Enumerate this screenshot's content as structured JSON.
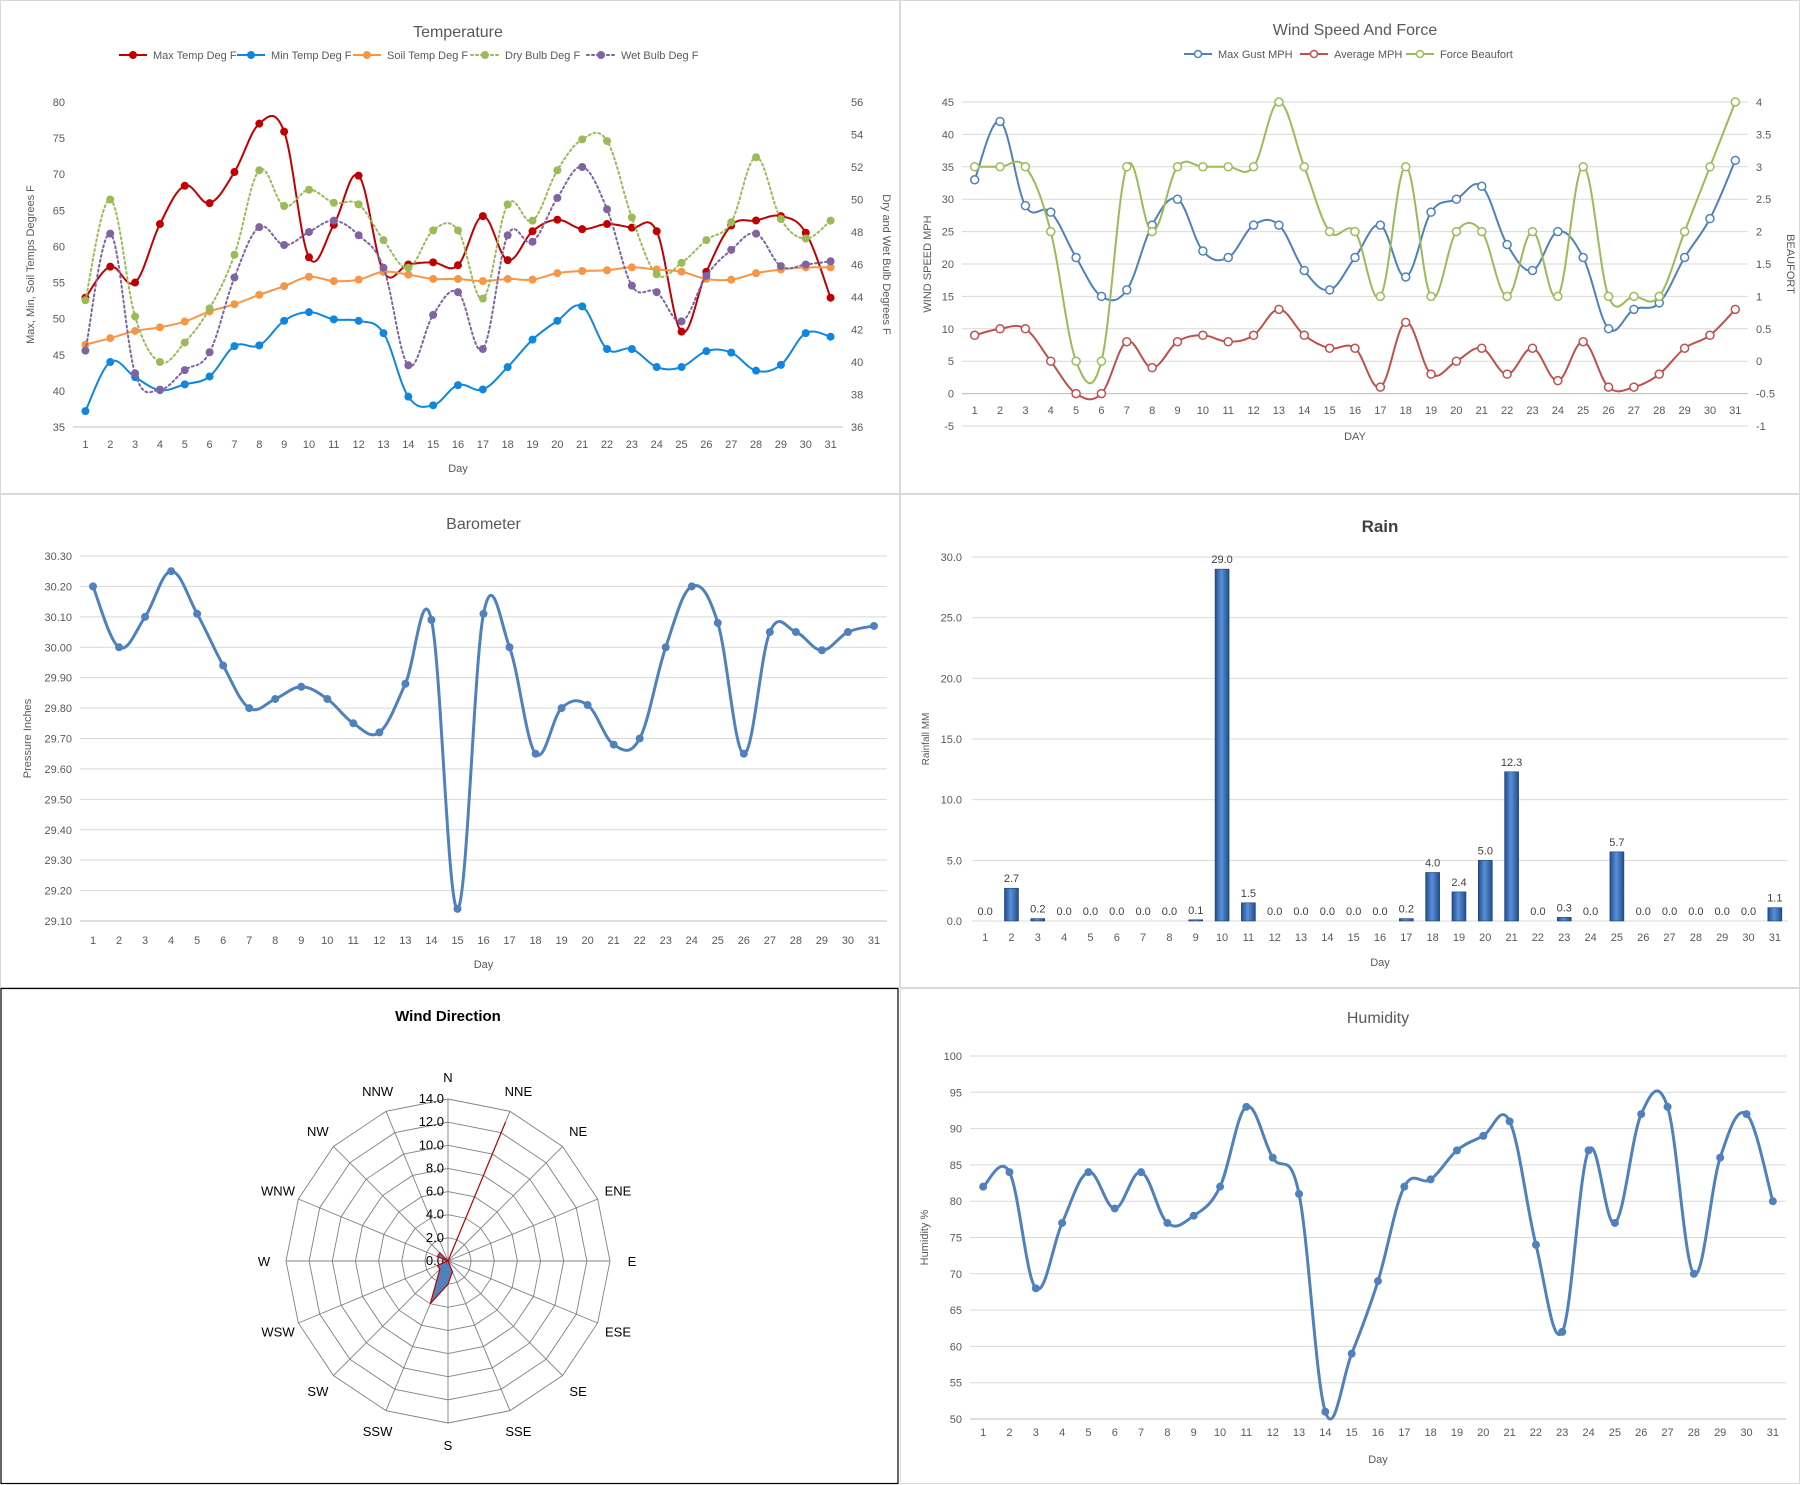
{
  "chart_data": [
    {
      "id": "temperature",
      "type": "line",
      "title": "Temperature",
      "xlabel": "Day",
      "ylabel": "Max, Min, Soil Temps Degrees F",
      "y2label": "Dry and Wet Bulb Degrees F",
      "ylim": [
        35,
        80
      ],
      "y2lim": [
        36,
        56
      ],
      "yticks": [
        "35",
        "40",
        "45",
        "50",
        "55",
        "60",
        "65",
        "70",
        "75",
        "80"
      ],
      "y2ticks": [
        "36",
        "38",
        "40",
        "42",
        "44",
        "46",
        "48",
        "50",
        "52",
        "54",
        "56"
      ],
      "grid": false,
      "legend": "top",
      "x": [
        1,
        2,
        3,
        4,
        5,
        6,
        7,
        8,
        9,
        10,
        11,
        12,
        13,
        14,
        15,
        16,
        17,
        18,
        19,
        20,
        21,
        22,
        23,
        24,
        25,
        26,
        27,
        28,
        29,
        30,
        31
      ],
      "series": [
        {
          "name": "Max Temp Deg F",
          "color": "#C00000",
          "axis": "left",
          "style": "solid",
          "values": [
            52.9,
            57.2,
            55.0,
            63.1,
            68.4,
            66.0,
            70.3,
            77.0,
            75.9,
            58.5,
            63.0,
            69.8,
            56.5,
            57.5,
            57.8,
            57.4,
            64.2,
            58.1,
            62.1,
            63.7,
            62.4,
            63.1,
            62.6,
            62.1,
            48.2,
            56.5,
            62.9,
            63.6,
            64.2,
            61.9,
            52.9
          ]
        },
        {
          "name": "Min Temp Deg F",
          "color": "#0F87DE",
          "axis": "left",
          "style": "solid",
          "values": [
            37.2,
            44.0,
            41.9,
            40.1,
            40.9,
            42.0,
            46.2,
            46.3,
            49.7,
            50.9,
            49.9,
            49.7,
            48.0,
            39.2,
            38.0,
            40.8,
            40.2,
            43.3,
            47.1,
            49.7,
            51.7,
            45.8,
            45.8,
            43.3,
            43.3,
            45.5,
            45.3,
            42.8,
            43.6,
            48.0,
            47.5
          ]
        },
        {
          "name": "Soil Temp Deg F",
          "color": "#F79646",
          "axis": "left",
          "style": "solid",
          "values": [
            46.4,
            47.3,
            48.3,
            48.8,
            49.6,
            51.0,
            52.0,
            53.3,
            54.5,
            55.8,
            55.2,
            55.4,
            56.5,
            56.1,
            55.5,
            55.5,
            55.2,
            55.5,
            55.4,
            56.3,
            56.6,
            56.7,
            57.1,
            56.8,
            56.5,
            55.5,
            55.4,
            56.3,
            56.8,
            57.1,
            57.1
          ]
        },
        {
          "name": "Dry Bulb Deg F",
          "color": "#9BBB59",
          "axis": "right",
          "style": "dotted",
          "values": [
            43.8,
            50.0,
            42.8,
            40.0,
            41.2,
            43.3,
            46.6,
            51.8,
            49.6,
            50.6,
            49.8,
            49.7,
            47.5,
            45.8,
            48.1,
            48.1,
            43.9,
            49.7,
            48.7,
            51.8,
            53.7,
            53.6,
            48.9,
            45.4,
            46.1,
            47.5,
            48.6,
            52.6,
            48.8,
            47.6,
            48.7
          ]
        },
        {
          "name": "Wet Bulb Deg F",
          "color": "#8064A2",
          "axis": "right",
          "style": "dotted",
          "values": [
            40.7,
            47.9,
            39.3,
            38.3,
            39.5,
            40.6,
            45.2,
            48.3,
            47.2,
            48.0,
            48.7,
            47.8,
            45.8,
            39.8,
            42.9,
            44.3,
            40.8,
            47.8,
            47.4,
            50.1,
            52.0,
            49.4,
            44.7,
            44.3,
            42.5,
            45.3,
            46.9,
            47.9,
            45.9,
            46.0,
            46.2
          ]
        }
      ]
    },
    {
      "id": "wind_speed",
      "type": "line",
      "title": "Wind Speed And Force",
      "xlabel": "DAY",
      "ylabel": "WIND SPEED MPH",
      "y2label": "BEAUFORT",
      "ylim": [
        -5,
        45
      ],
      "y2lim": [
        -1,
        4
      ],
      "yticks": [
        "-5",
        "0",
        "5",
        "10",
        "15",
        "20",
        "25",
        "30",
        "35",
        "40",
        "45"
      ],
      "y2ticks": [
        "-1",
        "-0.5",
        "0",
        "0.5",
        "1",
        "1.5",
        "2",
        "2.5",
        "3",
        "3.5",
        "4"
      ],
      "grid": true,
      "legend": "top",
      "x": [
        1,
        2,
        3,
        4,
        5,
        6,
        7,
        8,
        9,
        10,
        11,
        12,
        13,
        14,
        15,
        16,
        17,
        18,
        19,
        20,
        21,
        22,
        23,
        24,
        25,
        26,
        27,
        28,
        29,
        30,
        31
      ],
      "series": [
        {
          "name": "Max Gust MPH",
          "color": "#4F81BD",
          "axis": "left",
          "values": [
            33,
            42,
            29,
            28,
            21,
            15,
            16,
            26,
            30,
            22,
            21,
            26,
            26,
            19,
            16,
            21,
            26,
            18,
            28,
            30,
            32,
            23,
            19,
            25,
            21,
            10,
            13,
            14,
            21,
            27,
            36
          ]
        },
        {
          "name": "Average MPH",
          "color": "#C0504D",
          "axis": "left",
          "values": [
            9,
            10,
            10,
            5,
            0,
            0,
            8,
            4,
            8,
            9,
            8,
            9,
            13,
            9,
            7,
            7,
            1,
            11,
            3,
            5,
            7,
            3,
            7,
            2,
            8,
            1,
            1,
            3,
            7,
            9,
            13
          ]
        },
        {
          "name": "Force Beaufort",
          "color": "#9BBB59",
          "axis": "right",
          "values": [
            3,
            3,
            3,
            2,
            0,
            0,
            3,
            2,
            3,
            3,
            3,
            3,
            4,
            3,
            2,
            2,
            1,
            3,
            1,
            2,
            2,
            1,
            2,
            1,
            3,
            1,
            1,
            1,
            2,
            3,
            4
          ]
        }
      ]
    },
    {
      "id": "barometer",
      "type": "line",
      "title": "Barometer",
      "xlabel": "Day",
      "ylabel": "Pressure Inches",
      "ylim": [
        29.1,
        30.3
      ],
      "yticks": [
        "29.10",
        "29.20",
        "29.30",
        "29.40",
        "29.50",
        "29.60",
        "29.70",
        "29.80",
        "29.90",
        "30.00",
        "30.10",
        "30.20",
        "30.30"
      ],
      "grid": true,
      "x": [
        1,
        2,
        3,
        4,
        5,
        6,
        7,
        8,
        9,
        10,
        11,
        12,
        13,
        14,
        15,
        16,
        17,
        18,
        19,
        20,
        21,
        22,
        23,
        24,
        25,
        26,
        27,
        28,
        29,
        30,
        31
      ],
      "series": [
        {
          "color": "#4F81BD",
          "values": [
            30.2,
            30.0,
            30.1,
            30.25,
            30.11,
            29.94,
            29.8,
            29.83,
            29.87,
            29.83,
            29.75,
            29.72,
            29.88,
            30.09,
            29.14,
            30.11,
            30.0,
            29.65,
            29.8,
            29.81,
            29.68,
            29.7,
            30.0,
            30.2,
            30.08,
            29.65,
            30.05,
            30.05,
            29.99,
            30.05,
            30.07
          ]
        }
      ]
    },
    {
      "id": "rain",
      "type": "bar",
      "title": "Rain",
      "xlabel": "Day",
      "ylabel": "Rainfall MM",
      "ylim": [
        0,
        30
      ],
      "yticks": [
        "0.0",
        "5.0",
        "10.0",
        "15.0",
        "20.0",
        "25.0",
        "30.0"
      ],
      "grid": true,
      "categories": [
        "1",
        "2",
        "3",
        "4",
        "5",
        "6",
        "7",
        "8",
        "9",
        "10",
        "11",
        "12",
        "13",
        "14",
        "15",
        "16",
        "17",
        "18",
        "19",
        "20",
        "21",
        "22",
        "23",
        "24",
        "25",
        "26",
        "27",
        "28",
        "29",
        "30",
        "31"
      ],
      "values": [
        0.0,
        2.7,
        0.2,
        0.0,
        0.0,
        0.0,
        0.0,
        0.0,
        0.1,
        29.0,
        1.5,
        0.0,
        0.0,
        0.0,
        0.0,
        0.0,
        0.2,
        4.0,
        2.4,
        5.0,
        12.3,
        0.0,
        0.3,
        0.0,
        5.7,
        0.0,
        0.0,
        0.0,
        0.0,
        0.0,
        1.1
      ],
      "labels": [
        "0.0",
        "2.7",
        "0.2",
        "0.0",
        "0.0",
        "0.0",
        "0.0",
        "0.0",
        "0.1",
        "29.0",
        "1.5",
        "0.0",
        "0.0",
        "0.0",
        "0.0",
        "0.0",
        "0.2",
        "4.0",
        "2.4",
        "5.0",
        "12.3",
        "0.0",
        "0.3",
        "0.0",
        "5.7",
        "0.0",
        "0.0",
        "0.0",
        "0.0",
        "0.0",
        "1.1"
      ],
      "color": "#2F5F9E"
    },
    {
      "id": "wind_direction",
      "type": "radar",
      "title": "Wind Direction",
      "rlim": [
        0,
        14
      ],
      "rticks": [
        "0.0",
        "2.0",
        "4.0",
        "6.0",
        "8.0",
        "10.0",
        "12.0",
        "14.0"
      ],
      "directions": [
        "N",
        "NNE",
        "NE",
        "ENE",
        "E",
        "ESE",
        "SE",
        "SSE",
        "S",
        "SSW",
        "SW",
        "WSW",
        "W",
        "WNW",
        "NW",
        "NNW"
      ],
      "values": [
        0,
        13,
        0,
        0,
        0,
        0,
        0,
        1,
        2,
        4,
        1,
        1,
        0,
        1,
        1,
        0
      ],
      "fill": "#4F81BD",
      "stroke": "#C00000"
    },
    {
      "id": "humidity",
      "type": "line",
      "title": "Humidity",
      "xlabel": "Day",
      "ylabel": "Humidity %",
      "ylim": [
        50,
        100
      ],
      "yticks": [
        "50",
        "55",
        "60",
        "65",
        "70",
        "75",
        "80",
        "85",
        "90",
        "95",
        "100"
      ],
      "grid": true,
      "x": [
        1,
        2,
        3,
        4,
        5,
        6,
        7,
        8,
        9,
        10,
        11,
        12,
        13,
        14,
        15,
        16,
        17,
        18,
        19,
        20,
        21,
        22,
        23,
        24,
        25,
        26,
        27,
        28,
        29,
        30,
        31
      ],
      "series": [
        {
          "color": "#4F81BD",
          "values": [
            82,
            84,
            68,
            77,
            84,
            79,
            84,
            77,
            78,
            82,
            93,
            86,
            81,
            51,
            59,
            69,
            82,
            83,
            87,
            89,
            91,
            74,
            62,
            87,
            77,
            92,
            93,
            70,
            86,
            92,
            80
          ]
        }
      ]
    }
  ]
}
